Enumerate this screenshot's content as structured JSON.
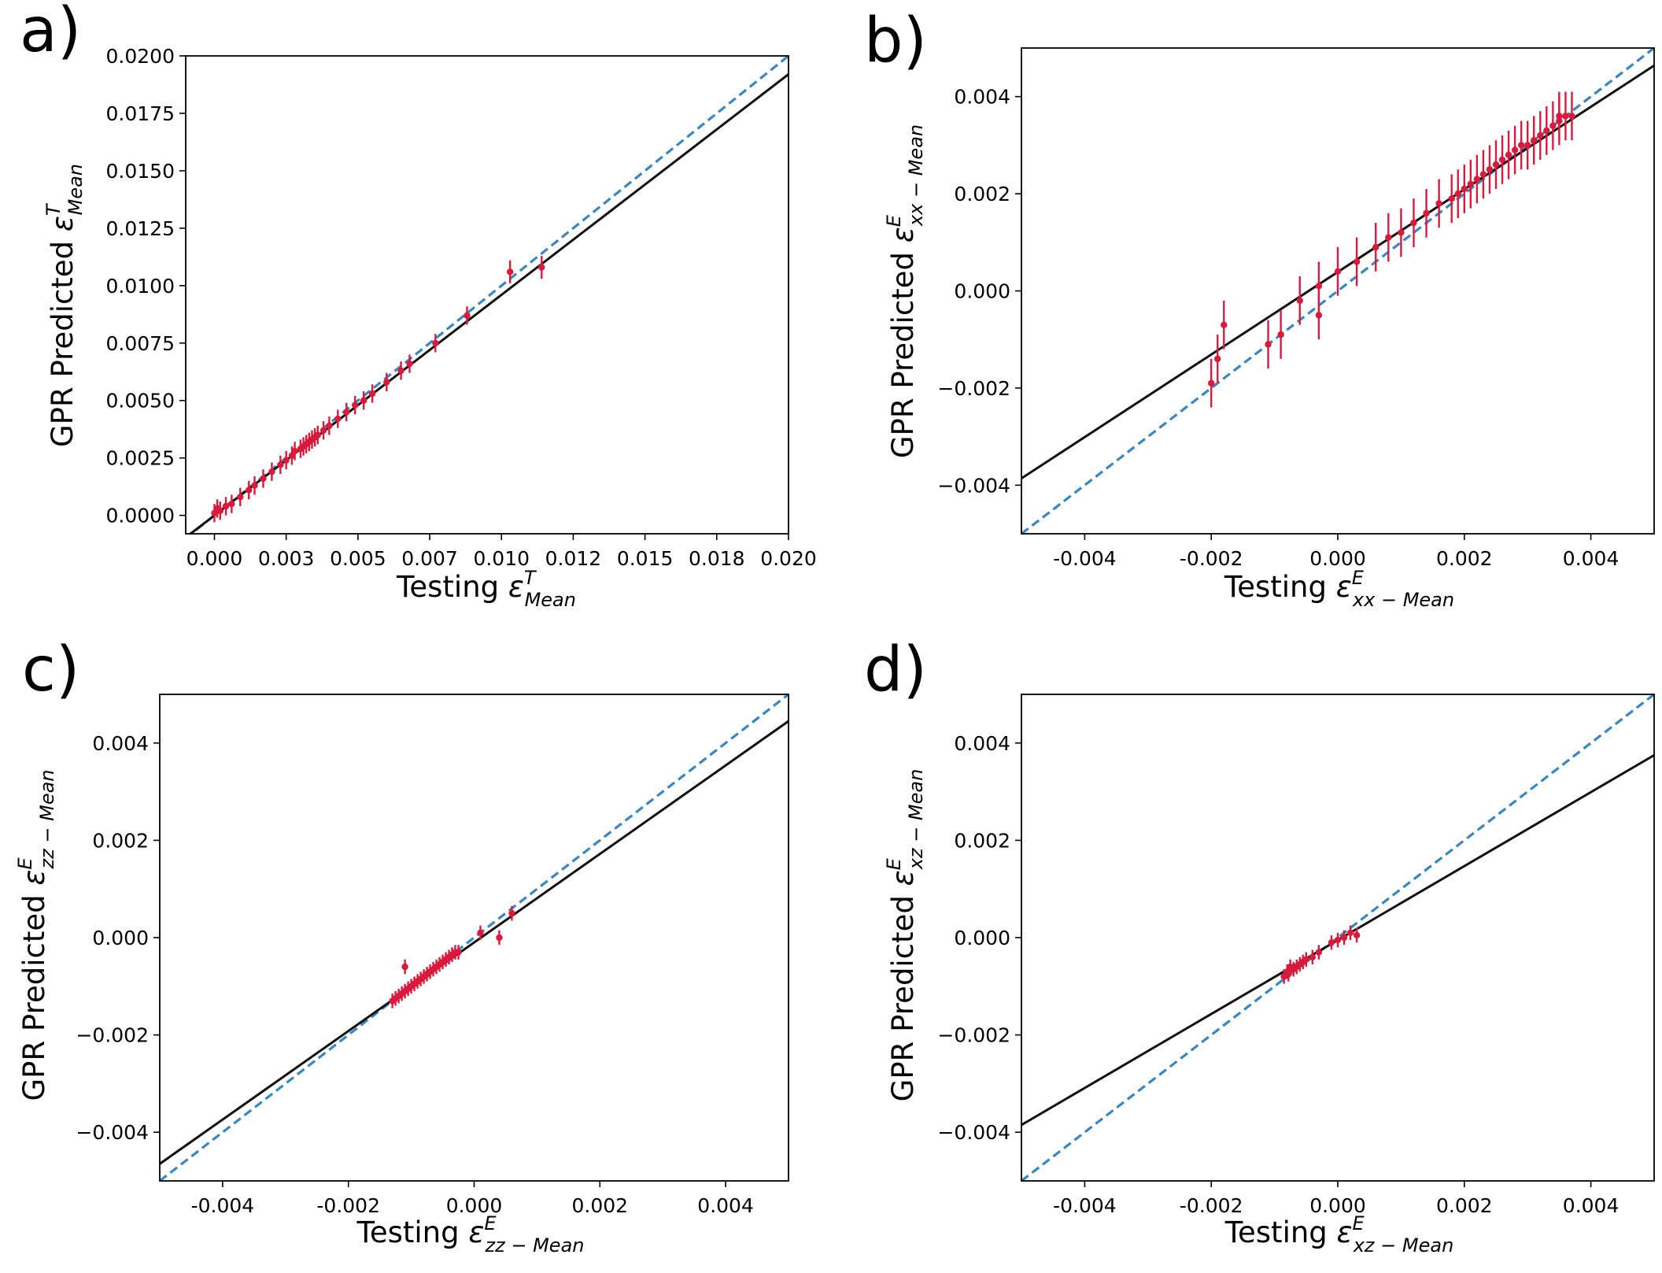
{
  "colors": {
    "points": "#d81b3c",
    "identity_line": "#3a87c0",
    "fit_line": "#111111",
    "axes": "#000000"
  },
  "chart_data": [
    {
      "panel_label": "a)",
      "type": "scatter",
      "title": "",
      "xlabel": "Testing",
      "xlabel_symbol": "ε",
      "xlabel_sup": "T",
      "xlabel_sub": "Mean",
      "ylabel": "GPR Predicted",
      "ylabel_symbol": "ε",
      "ylabel_sup": "T",
      "ylabel_sub": "Mean",
      "xlim": [
        -0.001,
        0.02
      ],
      "ylim": [
        -0.0008,
        0.02
      ],
      "xticks": [
        0.0,
        0.0025,
        0.005,
        0.0075,
        0.01,
        0.0125,
        0.015,
        0.0175,
        0.02
      ],
      "xtick_labels": [
        "0.000",
        "0.003",
        "0.005",
        "0.007",
        "0.010",
        "0.012",
        "0.015",
        "0.018",
        "0.020"
      ],
      "yticks": [
        0.0,
        0.0025,
        0.005,
        0.0075,
        0.01,
        0.0125,
        0.015,
        0.0175,
        0.02
      ],
      "ytick_labels": [
        "0.0000",
        "0.0025",
        "0.0050",
        "0.0075",
        "0.0100",
        "0.0125",
        "0.0150",
        "0.0175",
        "0.0200"
      ],
      "identity_line": {
        "slope": 1.0,
        "intercept": 0.0,
        "style": "dashed"
      },
      "fit_line": {
        "slope": 0.96,
        "intercept": 0.0,
        "style": "solid"
      },
      "points": [
        {
          "x": 0.0,
          "y": 0.0001,
          "err": 0.0004
        },
        {
          "x": 0.0001,
          "y": 0.0003,
          "err": 0.0004
        },
        {
          "x": 0.0002,
          "y": 0.0002,
          "err": 0.0004
        },
        {
          "x": 0.0004,
          "y": 0.0004,
          "err": 0.0004
        },
        {
          "x": 0.0006,
          "y": 0.0005,
          "err": 0.0004
        },
        {
          "x": 0.0009,
          "y": 0.0008,
          "err": 0.0004
        },
        {
          "x": 0.0012,
          "y": 0.0011,
          "err": 0.0004
        },
        {
          "x": 0.0014,
          "y": 0.0013,
          "err": 0.0004
        },
        {
          "x": 0.0017,
          "y": 0.0016,
          "err": 0.0004
        },
        {
          "x": 0.002,
          "y": 0.0019,
          "err": 0.0004
        },
        {
          "x": 0.0023,
          "y": 0.0022,
          "err": 0.0004
        },
        {
          "x": 0.0025,
          "y": 0.0024,
          "err": 0.0004
        },
        {
          "x": 0.0027,
          "y": 0.0026,
          "err": 0.0004
        },
        {
          "x": 0.0028,
          "y": 0.0028,
          "err": 0.0004
        },
        {
          "x": 0.003,
          "y": 0.0029,
          "err": 0.0004
        },
        {
          "x": 0.0031,
          "y": 0.003,
          "err": 0.0004
        },
        {
          "x": 0.0032,
          "y": 0.0031,
          "err": 0.0004
        },
        {
          "x": 0.0033,
          "y": 0.0032,
          "err": 0.0004
        },
        {
          "x": 0.0034,
          "y": 0.0033,
          "err": 0.0004
        },
        {
          "x": 0.0035,
          "y": 0.0034,
          "err": 0.0004
        },
        {
          "x": 0.0036,
          "y": 0.0035,
          "err": 0.0004
        },
        {
          "x": 0.0038,
          "y": 0.0037,
          "err": 0.0004
        },
        {
          "x": 0.004,
          "y": 0.0039,
          "err": 0.0004
        },
        {
          "x": 0.0043,
          "y": 0.0042,
          "err": 0.0004
        },
        {
          "x": 0.0046,
          "y": 0.0045,
          "err": 0.0004
        },
        {
          "x": 0.0049,
          "y": 0.0048,
          "err": 0.0004
        },
        {
          "x": 0.0052,
          "y": 0.005,
          "err": 0.0004
        },
        {
          "x": 0.0055,
          "y": 0.0053,
          "err": 0.0004
        },
        {
          "x": 0.006,
          "y": 0.0058,
          "err": 0.0004
        },
        {
          "x": 0.0065,
          "y": 0.0063,
          "err": 0.0004
        },
        {
          "x": 0.0068,
          "y": 0.0066,
          "err": 0.0004
        },
        {
          "x": 0.0077,
          "y": 0.0075,
          "err": 0.0004
        },
        {
          "x": 0.0088,
          "y": 0.0087,
          "err": 0.0004
        },
        {
          "x": 0.0103,
          "y": 0.0106,
          "err": 0.0005
        },
        {
          "x": 0.0114,
          "y": 0.0108,
          "err": 0.0005
        }
      ]
    },
    {
      "panel_label": "b)",
      "type": "scatter",
      "title": "",
      "xlabel": "Testing",
      "xlabel_symbol": "ε",
      "xlabel_sup": "E",
      "xlabel_sub": "xx − Mean",
      "ylabel": "GPR Predicted",
      "ylabel_symbol": "ε",
      "ylabel_sup": "E",
      "ylabel_sub": "xx − Mean",
      "xlim": [
        -0.005,
        0.005
      ],
      "ylim": [
        -0.005,
        0.005
      ],
      "xticks": [
        -0.004,
        -0.002,
        0.0,
        0.002,
        0.004
      ],
      "xtick_labels": [
        "-0.004",
        "-0.002",
        "0.000",
        "0.002",
        "0.004"
      ],
      "yticks": [
        -0.004,
        -0.002,
        0.0,
        0.002,
        0.004
      ],
      "ytick_labels": [
        "−0.004",
        "−0.002",
        "0.000",
        "0.002",
        "0.004"
      ],
      "identity_line": {
        "slope": 1.0,
        "intercept": 0.0,
        "style": "dashed"
      },
      "fit_line": {
        "slope": 0.85,
        "intercept": 0.00039,
        "style": "solid"
      },
      "points": [
        {
          "x": -0.002,
          "y": -0.0019,
          "err": 0.0005
        },
        {
          "x": -0.0019,
          "y": -0.0014,
          "err": 0.0005
        },
        {
          "x": -0.0018,
          "y": -0.0007,
          "err": 0.0005
        },
        {
          "x": -0.0011,
          "y": -0.0011,
          "err": 0.0005
        },
        {
          "x": -0.0009,
          "y": -0.0009,
          "err": 0.0005
        },
        {
          "x": -0.0006,
          "y": -0.0002,
          "err": 0.0005
        },
        {
          "x": -0.0003,
          "y": 0.0001,
          "err": 0.0005
        },
        {
          "x": -0.0003,
          "y": -0.0005,
          "err": 0.0005
        },
        {
          "x": 0.0,
          "y": 0.0004,
          "err": 0.0005
        },
        {
          "x": 0.0003,
          "y": 0.0006,
          "err": 0.0005
        },
        {
          "x": 0.0006,
          "y": 0.0009,
          "err": 0.0005
        },
        {
          "x": 0.0008,
          "y": 0.0011,
          "err": 0.0005
        },
        {
          "x": 0.001,
          "y": 0.0012,
          "err": 0.0005
        },
        {
          "x": 0.0012,
          "y": 0.0014,
          "err": 0.0005
        },
        {
          "x": 0.0014,
          "y": 0.0016,
          "err": 0.0005
        },
        {
          "x": 0.0016,
          "y": 0.0018,
          "err": 0.0005
        },
        {
          "x": 0.0018,
          "y": 0.0019,
          "err": 0.0005
        },
        {
          "x": 0.0019,
          "y": 0.002,
          "err": 0.0005
        },
        {
          "x": 0.002,
          "y": 0.0021,
          "err": 0.0005
        },
        {
          "x": 0.0021,
          "y": 0.0022,
          "err": 0.0005
        },
        {
          "x": 0.0022,
          "y": 0.0023,
          "err": 0.0005
        },
        {
          "x": 0.0023,
          "y": 0.0024,
          "err": 0.0005
        },
        {
          "x": 0.0024,
          "y": 0.0025,
          "err": 0.0005
        },
        {
          "x": 0.0025,
          "y": 0.0026,
          "err": 0.0005
        },
        {
          "x": 0.0026,
          "y": 0.0027,
          "err": 0.0005
        },
        {
          "x": 0.0027,
          "y": 0.0028,
          "err": 0.0005
        },
        {
          "x": 0.0028,
          "y": 0.0029,
          "err": 0.0005
        },
        {
          "x": 0.0029,
          "y": 0.003,
          "err": 0.0005
        },
        {
          "x": 0.003,
          "y": 0.003,
          "err": 0.0005
        },
        {
          "x": 0.0031,
          "y": 0.0031,
          "err": 0.0005
        },
        {
          "x": 0.0032,
          "y": 0.0032,
          "err": 0.0005
        },
        {
          "x": 0.0033,
          "y": 0.0033,
          "err": 0.0005
        },
        {
          "x": 0.0034,
          "y": 0.0034,
          "err": 0.0005
        },
        {
          "x": 0.0035,
          "y": 0.0035,
          "err": 0.0005
        },
        {
          "x": 0.0035,
          "y": 0.0036,
          "err": 0.0005
        },
        {
          "x": 0.0036,
          "y": 0.0036,
          "err": 0.0005
        },
        {
          "x": 0.0037,
          "y": 0.0036,
          "err": 0.0005
        }
      ]
    },
    {
      "panel_label": "c)",
      "type": "scatter",
      "title": "",
      "xlabel": "Testing",
      "xlabel_symbol": "ε",
      "xlabel_sup": "E",
      "xlabel_sub": "zz − Mean",
      "ylabel": "GPR Predicted",
      "ylabel_symbol": "ε",
      "ylabel_sup": "E",
      "ylabel_sub": "zz − Mean",
      "xlim": [
        -0.005,
        0.005
      ],
      "ylim": [
        -0.005,
        0.005
      ],
      "xticks": [
        -0.004,
        -0.002,
        0.0,
        0.002,
        0.004
      ],
      "xtick_labels": [
        "-0.004",
        "-0.002",
        "0.000",
        "0.002",
        "0.004"
      ],
      "yticks": [
        -0.004,
        -0.002,
        0.0,
        0.002,
        0.004
      ],
      "ytick_labels": [
        "−0.004",
        "−0.002",
        "0.000",
        "0.002",
        "0.004"
      ],
      "identity_line": {
        "slope": 1.0,
        "intercept": 0.0,
        "style": "dashed"
      },
      "fit_line": {
        "slope": 0.91,
        "intercept": -0.0001,
        "style": "solid"
      },
      "points": [
        {
          "x": -0.0013,
          "y": -0.0013,
          "err": 0.00015
        },
        {
          "x": -0.00125,
          "y": -0.00125,
          "err": 0.00015
        },
        {
          "x": -0.0012,
          "y": -0.0012,
          "err": 0.00015
        },
        {
          "x": -0.00115,
          "y": -0.00115,
          "err": 0.00015
        },
        {
          "x": -0.0011,
          "y": -0.0011,
          "err": 0.00015
        },
        {
          "x": -0.00105,
          "y": -0.00105,
          "err": 0.00015
        },
        {
          "x": -0.001,
          "y": -0.001,
          "err": 0.00015
        },
        {
          "x": -0.00095,
          "y": -0.00095,
          "err": 0.00015
        },
        {
          "x": -0.0009,
          "y": -0.0009,
          "err": 0.00015
        },
        {
          "x": -0.00085,
          "y": -0.00085,
          "err": 0.00015
        },
        {
          "x": -0.0008,
          "y": -0.0008,
          "err": 0.00015
        },
        {
          "x": -0.00075,
          "y": -0.00075,
          "err": 0.00015
        },
        {
          "x": -0.0007,
          "y": -0.0007,
          "err": 0.00015
        },
        {
          "x": -0.00065,
          "y": -0.00065,
          "err": 0.00015
        },
        {
          "x": -0.0006,
          "y": -0.0006,
          "err": 0.00015
        },
        {
          "x": -0.00055,
          "y": -0.00055,
          "err": 0.00015
        },
        {
          "x": -0.0005,
          "y": -0.0005,
          "err": 0.00015
        },
        {
          "x": -0.00045,
          "y": -0.00045,
          "err": 0.00015
        },
        {
          "x": -0.0004,
          "y": -0.0004,
          "err": 0.00015
        },
        {
          "x": -0.00035,
          "y": -0.00035,
          "err": 0.00015
        },
        {
          "x": -0.0003,
          "y": -0.0003,
          "err": 0.00015
        },
        {
          "x": -0.00025,
          "y": -0.0003,
          "err": 0.00015
        },
        {
          "x": -0.0011,
          "y": -0.0006,
          "err": 0.00015
        },
        {
          "x": 0.0001,
          "y": 0.0001,
          "err": 0.00015
        },
        {
          "x": 0.0004,
          "y": 0.0,
          "err": 0.00015
        },
        {
          "x": 0.0006,
          "y": 0.0005,
          "err": 0.00015
        }
      ]
    },
    {
      "panel_label": "d)",
      "type": "scatter",
      "title": "",
      "xlabel": "Testing",
      "xlabel_symbol": "ε",
      "xlabel_sup": "E",
      "xlabel_sub": "xz − Mean",
      "ylabel": "GPR Predicted",
      "ylabel_symbol": "ε",
      "ylabel_sup": "E",
      "ylabel_sub": "xz − Mean",
      "xlim": [
        -0.005,
        0.005
      ],
      "ylim": [
        -0.005,
        0.005
      ],
      "xticks": [
        -0.004,
        -0.002,
        0.0,
        0.002,
        0.004
      ],
      "xtick_labels": [
        "-0.004",
        "-0.002",
        "0.000",
        "0.002",
        "0.004"
      ],
      "yticks": [
        -0.004,
        -0.002,
        0.0,
        0.002,
        0.004
      ],
      "ytick_labels": [
        "−0.004",
        "−0.002",
        "0.000",
        "0.002",
        "0.004"
      ],
      "identity_line": {
        "slope": 1.0,
        "intercept": 0.0,
        "style": "dashed"
      },
      "fit_line": {
        "slope": 0.76,
        "intercept": -5e-05,
        "style": "solid"
      },
      "points": [
        {
          "x": -0.00085,
          "y": -0.0008,
          "err": 0.00015
        },
        {
          "x": -0.0008,
          "y": -0.0007,
          "err": 0.00015
        },
        {
          "x": -0.00078,
          "y": -0.00075,
          "err": 0.00015
        },
        {
          "x": -0.00075,
          "y": -0.0006,
          "err": 0.00015
        },
        {
          "x": -0.0007,
          "y": -0.00065,
          "err": 0.00015
        },
        {
          "x": -0.00065,
          "y": -0.0006,
          "err": 0.00015
        },
        {
          "x": -0.0006,
          "y": -0.00055,
          "err": 0.00015
        },
        {
          "x": -0.00055,
          "y": -0.0005,
          "err": 0.00015
        },
        {
          "x": -0.0005,
          "y": -0.00045,
          "err": 0.00015
        },
        {
          "x": -0.0004,
          "y": -0.0004,
          "err": 0.00015
        },
        {
          "x": -0.0003,
          "y": -0.0003,
          "err": 0.00015
        },
        {
          "x": -0.0001,
          "y": -0.0001,
          "err": 0.00015
        },
        {
          "x": 0.0,
          "y": -5e-05,
          "err": 0.00015
        },
        {
          "x": 0.0001,
          "y": 0.0,
          "err": 0.00015
        },
        {
          "x": 0.0002,
          "y": 0.0001,
          "err": 0.00015
        },
        {
          "x": 0.0003,
          "y": 5e-05,
          "err": 0.00015
        }
      ]
    }
  ]
}
